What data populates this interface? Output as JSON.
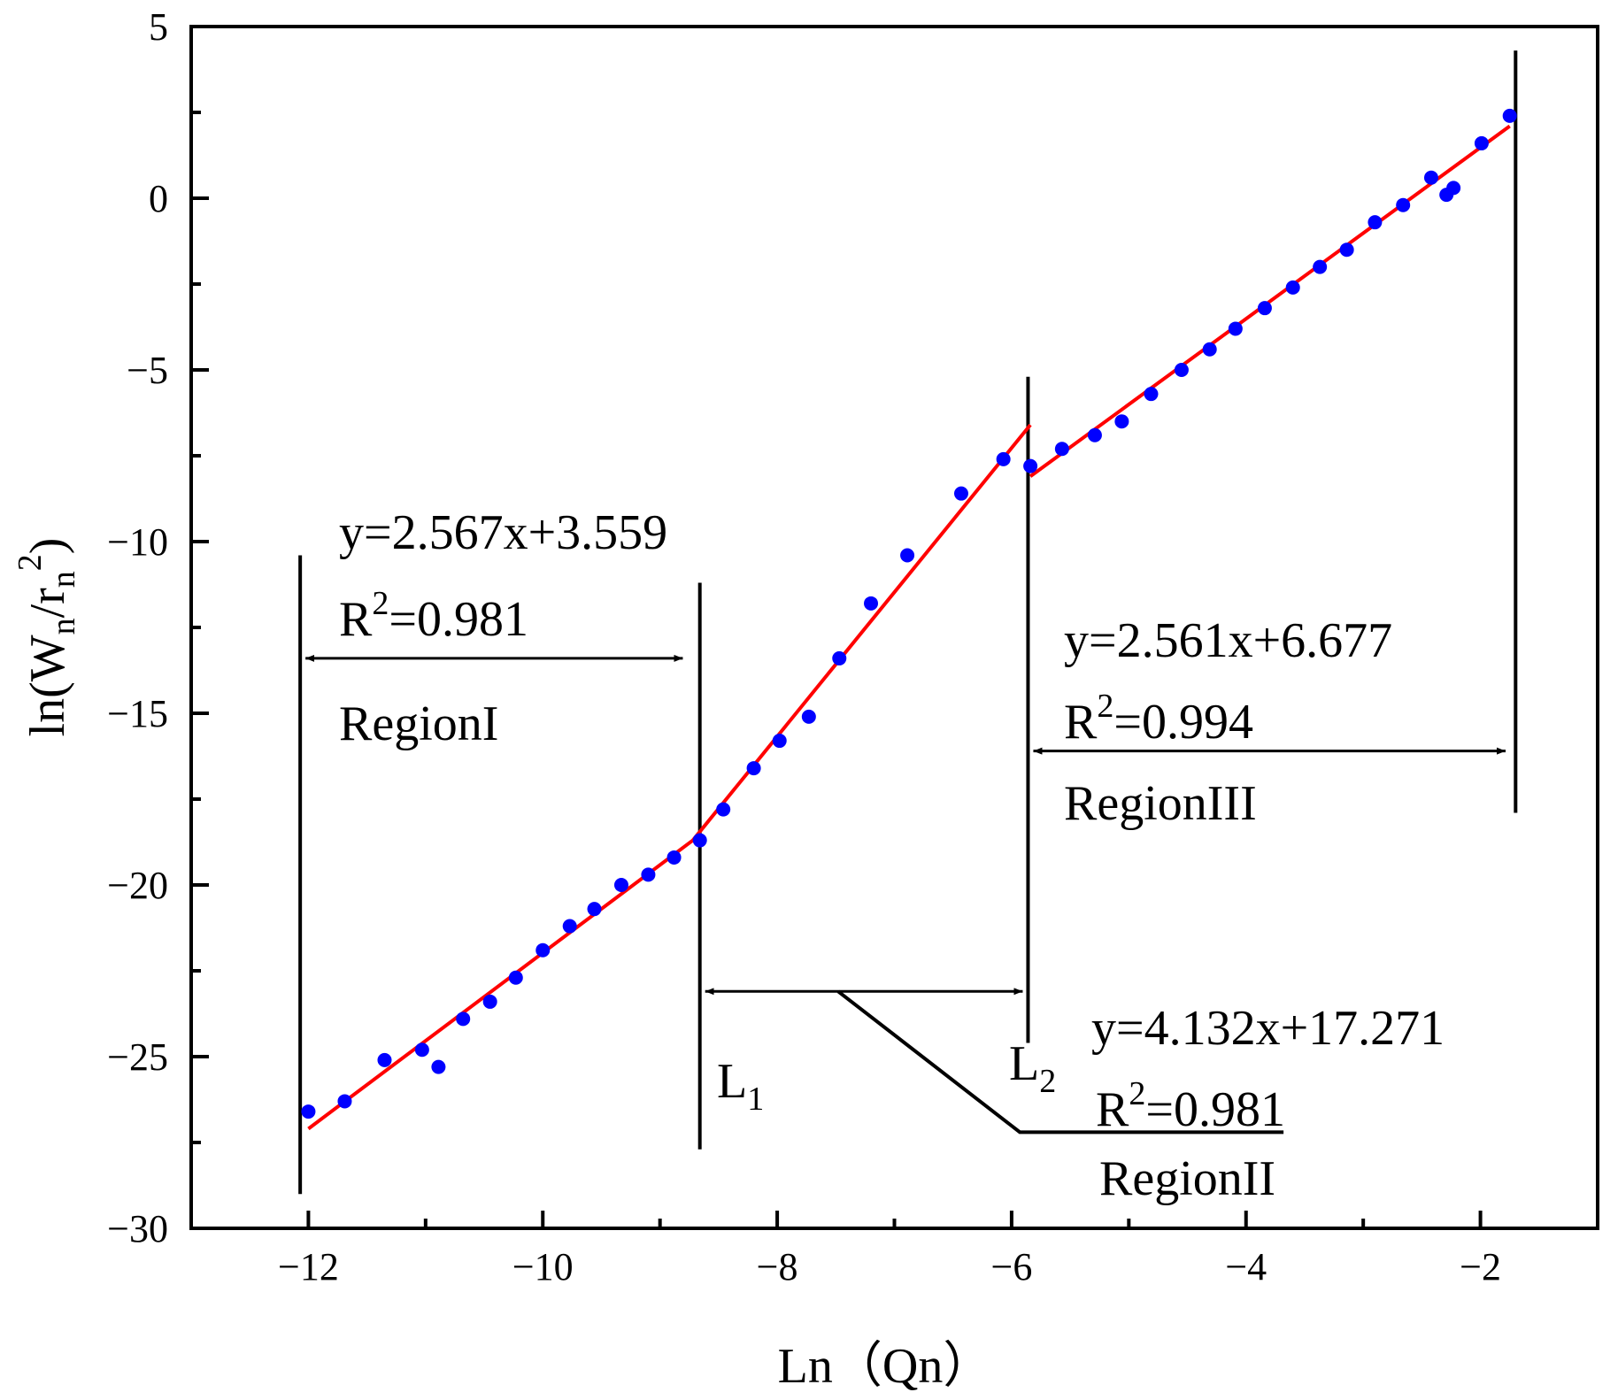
{
  "chart_data": {
    "type": "scatter",
    "xlabel": "Ln（Qn）",
    "ylabel": {
      "base": "ln(W",
      "sub1": "n",
      "mid": "/r",
      "sub2": "n",
      "sup": "2",
      "end": ")"
    },
    "xlim": [
      -13,
      -1
    ],
    "ylim": [
      -30,
      5
    ],
    "xticks": [
      -12,
      -10,
      -8,
      -6,
      -4,
      -2
    ],
    "xtick_labels": [
      "−12",
      "−10",
      "−8",
      "−6",
      "−4",
      "−2"
    ],
    "yticks": [
      5,
      0,
      -5,
      -10,
      -15,
      -20,
      -25,
      -30
    ],
    "ytick_labels": [
      "5",
      "0",
      "−5",
      "−10",
      "−15",
      "−20",
      "−25",
      "−30"
    ],
    "point_color": "#0000ff",
    "fit_color": "#ff0000",
    "points": [
      [
        -12.0,
        -26.6
      ],
      [
        -11.69,
        -26.3
      ],
      [
        -11.35,
        -25.1
      ],
      [
        -11.03,
        -24.8
      ],
      [
        -10.89,
        -25.3
      ],
      [
        -10.68,
        -23.9
      ],
      [
        -10.45,
        -23.4
      ],
      [
        -10.23,
        -22.7
      ],
      [
        -10.0,
        -21.9
      ],
      [
        -9.77,
        -21.2
      ],
      [
        -9.56,
        -20.7
      ],
      [
        -9.33,
        -20.0
      ],
      [
        -9.1,
        -19.7
      ],
      [
        -8.88,
        -19.2
      ],
      [
        -8.66,
        -18.7
      ],
      [
        -8.46,
        -17.8
      ],
      [
        -8.2,
        -16.6
      ],
      [
        -7.98,
        -15.8
      ],
      [
        -7.73,
        -15.1
      ],
      [
        -7.47,
        -13.4
      ],
      [
        -7.2,
        -11.8
      ],
      [
        -6.89,
        -10.4
      ],
      [
        -6.43,
        -8.6
      ],
      [
        -6.07,
        -7.6
      ],
      [
        -5.84,
        -7.8
      ],
      [
        -5.57,
        -7.3
      ],
      [
        -5.29,
        -6.9
      ],
      [
        -5.06,
        -6.5
      ],
      [
        -4.81,
        -5.7
      ],
      [
        -4.55,
        -5.0
      ],
      [
        -4.31,
        -4.4
      ],
      [
        -4.09,
        -3.8
      ],
      [
        -3.84,
        -3.2
      ],
      [
        -3.6,
        -2.6
      ],
      [
        -3.37,
        -2.0
      ],
      [
        -3.14,
        -1.5
      ],
      [
        -2.9,
        -0.7
      ],
      [
        -2.66,
        -0.2
      ],
      [
        -2.42,
        0.6
      ],
      [
        -2.29,
        0.1
      ],
      [
        -2.23,
        0.3
      ],
      [
        -1.99,
        1.6
      ],
      [
        -1.75,
        2.4
      ]
    ],
    "fit_lines": [
      {
        "name": "Region I fit",
        "x": [
          -12.0,
          -8.72
        ],
        "y": [
          -27.1,
          -18.7
        ]
      },
      {
        "name": "Region II fit",
        "x": [
          -8.72,
          -5.84
        ],
        "y": [
          -18.7,
          -6.6
        ]
      },
      {
        "name": "Region III fit",
        "x": [
          -5.84,
          -1.75
        ],
        "y": [
          -8.1,
          2.1
        ]
      }
    ],
    "boundaries": [
      {
        "name": "boundary-left",
        "x": -12.07,
        "y0": -29.0,
        "y1": -10.4
      },
      {
        "name": "boundary-l1",
        "x": -8.66,
        "y0": -27.7,
        "y1": -11.2
      },
      {
        "name": "boundary-l2",
        "x": -5.86,
        "y0": -24.6,
        "y1": -5.2
      },
      {
        "name": "boundary-right",
        "x": -1.7,
        "y0": -17.9,
        "y1": 4.3
      }
    ],
    "region_arrows": [
      {
        "name": "region-i-arrow",
        "x0": -12.07,
        "x1": -8.76,
        "y": -13.4
      },
      {
        "name": "region-ii-arrow",
        "x0": -8.66,
        "x1": -5.86,
        "y": -23.1
      },
      {
        "name": "region-iii-arrow",
        "x0": -5.86,
        "x1": -1.74,
        "y": -16.1
      }
    ],
    "leader_line": {
      "x": [
        -7.48,
        -5.93,
        -3.68
      ],
      "y": [
        -23.1,
        -27.2,
        -27.2
      ]
    },
    "annotations": {
      "region1": {
        "equation": "y=2.567x+3.559",
        "r2_base": "R",
        "r2_sup": "2",
        "r2_value": "=0.981",
        "label": "RegionI"
      },
      "region2": {
        "equation": "y=4.132x+17.271",
        "r2_base": "R",
        "r2_sup": "2",
        "r2_value": "=0.981",
        "label": "RegionII"
      },
      "region3": {
        "equation": "y=2.561x+6.677",
        "r2_base": "R",
        "r2_sup": "2",
        "r2_value": "=0.994",
        "label": "RegionIII"
      },
      "l1": {
        "base": "L",
        "sub": "1"
      },
      "l2": {
        "base": "L",
        "sub": "2"
      }
    }
  }
}
